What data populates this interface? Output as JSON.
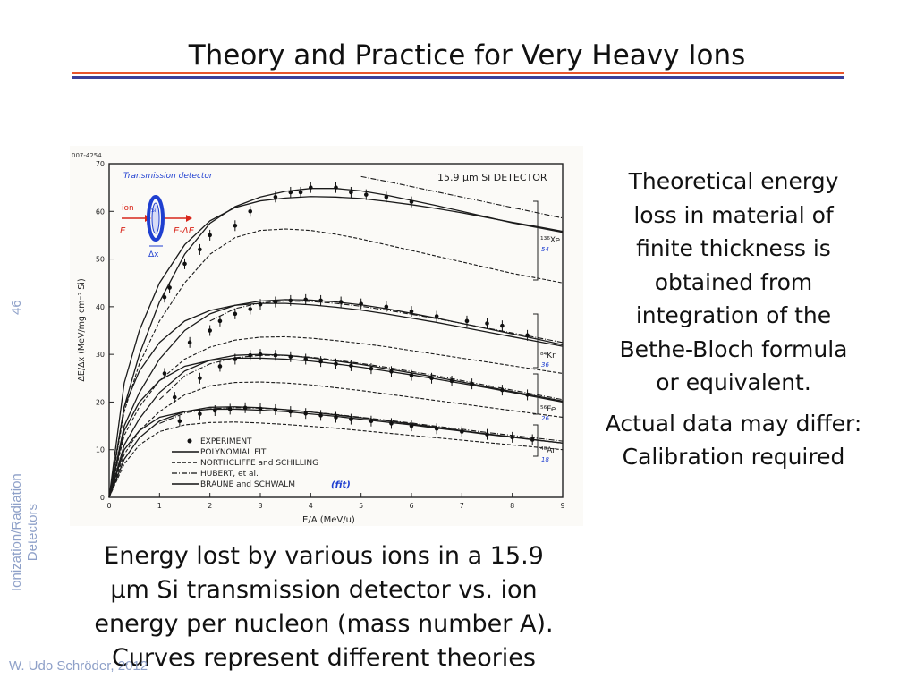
{
  "slide": {
    "title": "Theory and Practice for Very Heavy Ions",
    "page_number": "46",
    "course_line1": "Ionization/Radiation",
    "course_line2": "Detectors",
    "author": "W. Udo Schröder, 2012",
    "right_text_1": "Theoretical energy loss in material of finite thickness is obtained from integration of the Bethe-Bloch formula or equivalent.",
    "right_text_2": "Actual data may differ: Calibration required",
    "caption": "Energy lost by various ions in a 15.9 μm Si transmission detector vs. ion energy per nucleon (mass number A). Curves represent different theories",
    "colors": {
      "red_rule": "#e8552b",
      "blue_rule": "#3a3f9a",
      "side_text": "#8ea0c8",
      "annotation_blue": "#1f3fd0",
      "annotation_red": "#d8261b"
    }
  },
  "chart_data": {
    "type": "line",
    "figure_id": "007-4254",
    "panel_label": "15.9 μm Si DETECTOR",
    "xlabel": "E/A (MeV/u)",
    "ylabel": "ΔE/Δx (MeV/mg cm⁻² Si)",
    "xlim": [
      0,
      9
    ],
    "ylim": [
      0,
      70
    ],
    "xticks": [
      "0",
      "1",
      "2",
      "3",
      "4",
      "5",
      "6",
      "7",
      "8",
      "9"
    ],
    "yticks": [
      "0",
      "10",
      "20",
      "30",
      "40",
      "50",
      "60",
      "70"
    ],
    "inset_title": "Transmission detector",
    "inset_labels": {
      "ion": "ion",
      "e_in": "E",
      "e_out": "E-ΔE",
      "dx": "Δx",
      "si": "Si"
    },
    "legend": [
      {
        "label": "EXPERIMENT",
        "style": "point"
      },
      {
        "label": "POLYNOMIAL FIT",
        "style": "solid"
      },
      {
        "label": "NORTHCLIFFE and SCHILLING",
        "style": "dashed"
      },
      {
        "label": "HUBERT, et al.",
        "style": "dashdot"
      },
      {
        "label": "BRAUNE and SCHWALM",
        "style": "solid",
        "annotation": "(fit)"
      }
    ],
    "ions": [
      {
        "label": "¹³⁶Xe",
        "annotation": "54"
      },
      {
        "label": "⁸⁴Kr",
        "annotation": "36"
      },
      {
        "label": "⁵⁶Fe",
        "annotation": "26"
      },
      {
        "label": "⁴⁰Ar",
        "annotation": "18"
      }
    ],
    "curve_x": [
      0.3,
      0.6,
      1,
      1.5,
      2,
      2.5,
      3,
      3.5,
      4,
      4.5,
      5,
      5.5,
      6,
      6.5,
      7,
      7.5,
      8,
      8.5,
      9
    ],
    "series": [
      {
        "ion": "Xe",
        "kind": "polynomial_fit",
        "style": "solid",
        "values": [
          19,
          30,
          41,
          51,
          57.5,
          61,
          63,
          64.2,
          64.8,
          64.8,
          64.3,
          63.4,
          62.3,
          61.2,
          60,
          58.8,
          57.6,
          56.6,
          55.6
        ]
      },
      {
        "ion": "Xe",
        "kind": "braune_schwalm",
        "style": "solid",
        "values": [
          24,
          35,
          45,
          53,
          58,
          60.8,
          62.2,
          62.8,
          63.1,
          63,
          62.7,
          62.1,
          61.4,
          60.6,
          59.7,
          58.7,
          57.7,
          56.8,
          55.8
        ]
      },
      {
        "ion": "Xe",
        "kind": "northcliffe",
        "style": "dashed",
        "values": [
          18,
          28,
          37,
          45,
          51,
          54.5,
          56,
          56.3,
          56,
          55.2,
          54.2,
          53,
          51.8,
          50.6,
          49.4,
          48.2,
          47,
          46,
          45
        ]
      },
      {
        "ion": "Xe",
        "kind": "hubert",
        "style": "dashdot",
        "values": [
          null,
          null,
          null,
          null,
          null,
          null,
          null,
          null,
          null,
          null,
          67.3,
          66.3,
          65.2,
          64.1,
          63,
          61.9,
          60.8,
          59.7,
          58.6
        ]
      },
      {
        "ion": "Kr",
        "kind": "polynomial_fit",
        "style": "solid",
        "values": [
          15,
          22,
          29,
          35,
          38.5,
          40.3,
          41.2,
          41.5,
          41.4,
          41,
          40.4,
          39.6,
          38.6,
          37.6,
          36.5,
          35.4,
          34.3,
          33.2,
          32
        ]
      },
      {
        "ion": "Kr",
        "kind": "braune_schwalm",
        "style": "solid",
        "values": [
          19,
          26.5,
          32.5,
          37,
          39.2,
          40.3,
          40.7,
          40.7,
          40.4,
          39.9,
          39.3,
          38.5,
          37.6,
          36.7,
          35.7,
          34.7,
          33.7,
          32.7,
          31.7
        ]
      },
      {
        "ion": "Kr",
        "kind": "northcliffe",
        "style": "dashed",
        "values": [
          13,
          19,
          24.5,
          29,
          31.5,
          33,
          33.6,
          33.7,
          33.4,
          32.9,
          32.3,
          31.6,
          30.8,
          30,
          29.2,
          28.4,
          27.6,
          26.8,
          26
        ]
      },
      {
        "ion": "Kr",
        "kind": "hubert",
        "style": "dashdot",
        "values": [
          null,
          null,
          null,
          null,
          37,
          39.6,
          40.8,
          41.2,
          41.1,
          40.7,
          40.1,
          39.3,
          38.4,
          37.5,
          36.5,
          35.5,
          34.5,
          33.5,
          32.5
        ]
      },
      {
        "ion": "Fe",
        "kind": "polynomial_fit",
        "style": "solid",
        "values": [
          11,
          16.5,
          22,
          26.5,
          28.8,
          29.8,
          30,
          29.8,
          29.3,
          28.6,
          27.9,
          27,
          26.1,
          25.2,
          24.2,
          23.2,
          22.2,
          21.2,
          20.2
        ]
      },
      {
        "ion": "Fe",
        "kind": "braune_schwalm",
        "style": "solid",
        "values": [
          14,
          20,
          24.5,
          27.5,
          28.7,
          29.2,
          29.2,
          29,
          28.6,
          28,
          27.3,
          26.5,
          25.7,
          24.8,
          23.9,
          23,
          22,
          21,
          20
        ]
      },
      {
        "ion": "Fe",
        "kind": "northcliffe",
        "style": "dashed",
        "values": [
          9,
          14,
          18,
          21.5,
          23.4,
          24.1,
          24.2,
          24,
          23.6,
          23,
          22.4,
          21.7,
          21,
          20.3,
          19.6,
          18.9,
          18.2,
          17.5,
          16.8
        ]
      },
      {
        "ion": "Fe",
        "kind": "hubert",
        "style": "dashdot",
        "values": [
          null,
          null,
          20.5,
          25.5,
          28,
          29.3,
          29.8,
          29.8,
          29.4,
          28.8,
          28.1,
          27.3,
          26.4,
          25.5,
          24.5,
          23.5,
          22.5,
          21.5,
          20.5
        ]
      },
      {
        "ion": "Ar",
        "kind": "polynomial_fit",
        "style": "solid",
        "values": [
          8,
          12.5,
          16,
          18,
          18.9,
          19,
          18.8,
          18.4,
          17.9,
          17.3,
          16.7,
          16.1,
          15.4,
          14.7,
          14,
          13.3,
          12.7,
          12,
          11.4
        ]
      },
      {
        "ion": "Ar",
        "kind": "braune_schwalm",
        "style": "solid",
        "values": [
          10,
          14,
          16.8,
          18,
          18.5,
          18.5,
          18.3,
          18,
          17.5,
          17,
          16.4,
          15.8,
          15.2,
          14.5,
          13.9,
          13.2,
          12.6,
          12,
          11.4
        ]
      },
      {
        "ion": "Ar",
        "kind": "northcliffe",
        "style": "dashed",
        "values": [
          7,
          11,
          13.8,
          15.2,
          15.7,
          15.8,
          15.6,
          15.3,
          14.9,
          14.5,
          14,
          13.5,
          13,
          12.5,
          12,
          11.5,
          11,
          10.5,
          10
        ]
      },
      {
        "ion": "Ar",
        "kind": "hubert",
        "style": "dashdot",
        "values": [
          null,
          null,
          15.5,
          17.7,
          18.6,
          18.8,
          18.7,
          18.4,
          17.9,
          17.4,
          16.8,
          16.2,
          15.6,
          14.9,
          14.3,
          13.6,
          13,
          12.4,
          11.8
        ]
      }
    ],
    "experiment": [
      {
        "ion": "Xe",
        "x": [
          1.1,
          1.2,
          1.5,
          1.8,
          2.0,
          2.5,
          2.8,
          3.3,
          3.6,
          3.8,
          4.0,
          4.5,
          4.8,
          5.1,
          5.5,
          6.0
        ],
        "y": [
          42,
          44,
          49,
          52,
          55,
          57,
          60,
          63,
          64,
          64,
          65,
          65,
          64,
          63.5,
          63,
          62
        ]
      },
      {
        "ion": "Kr",
        "x": [
          1.1,
          1.6,
          2.0,
          2.2,
          2.5,
          2.8,
          3.0,
          3.3,
          3.6,
          3.9,
          4.2,
          4.6,
          5.0,
          5.5,
          6.0,
          6.5,
          7.1,
          7.5,
          7.8,
          8.3
        ],
        "y": [
          26,
          32.5,
          35,
          37,
          38.5,
          39.5,
          40.5,
          41,
          41.3,
          41.5,
          41.3,
          41,
          40.6,
          40,
          39,
          38,
          37,
          36.5,
          36,
          34
        ]
      },
      {
        "ion": "Fe",
        "x": [
          1.3,
          1.8,
          2.2,
          2.5,
          2.8,
          3.0,
          3.3,
          3.6,
          3.9,
          4.2,
          4.5,
          4.8,
          5.2,
          5.6,
          6.0,
          6.4,
          6.8,
          7.2,
          7.8,
          8.3
        ],
        "y": [
          21,
          25,
          27.5,
          29,
          29.8,
          30,
          29.8,
          29.5,
          29,
          28.5,
          28,
          27.6,
          27,
          26.4,
          25.6,
          25,
          24.4,
          23.8,
          22.5,
          21.5
        ]
      },
      {
        "ion": "Ar",
        "x": [
          1.4,
          1.8,
          2.1,
          2.4,
          2.7,
          3.0,
          3.3,
          3.6,
          3.9,
          4.2,
          4.5,
          4.8,
          5.2,
          5.6,
          6.0,
          6.5,
          7.0,
          7.5,
          8.0,
          8.4
        ],
        "y": [
          16,
          17.5,
          18.2,
          18.5,
          18.8,
          18.6,
          18.4,
          18,
          17.6,
          17.2,
          16.8,
          16.4,
          16,
          15.5,
          15,
          14.4,
          13.8,
          13.2,
          12.6,
          12.1
        ]
      }
    ]
  }
}
